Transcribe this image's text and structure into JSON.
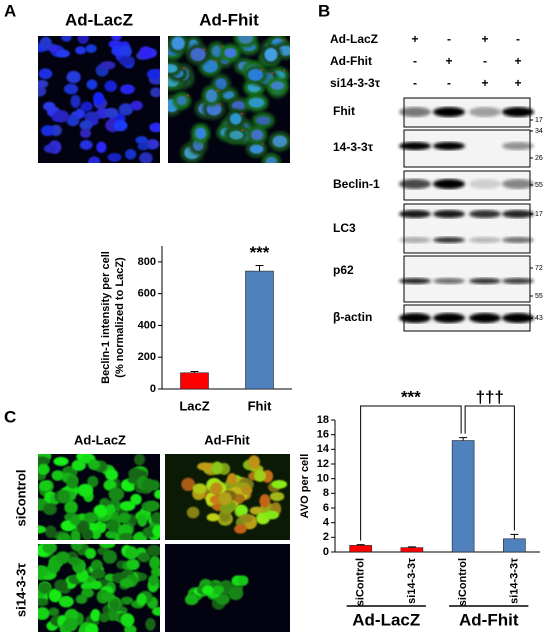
{
  "panel_labels": [
    "A",
    "B",
    "C"
  ],
  "panel_a": {
    "image_labels": [
      "Ad-LacZ",
      "Ad-Fhit"
    ]
  },
  "blot": {
    "treatments": [
      {
        "name": "Ad-LacZ",
        "signs": [
          "+",
          "-",
          "+",
          "-"
        ]
      },
      {
        "name": "Ad-Fhit",
        "signs": [
          "-",
          "+",
          "-",
          "+"
        ]
      },
      {
        "name": "si14-3-3τ",
        "signs": [
          "-",
          "-",
          "+",
          "+"
        ]
      }
    ],
    "rows": [
      {
        "name": "Fhit",
        "markers": [
          17
        ]
      },
      {
        "name": "14-3-3τ",
        "markers": [
          34,
          26
        ]
      },
      {
        "name": "Beclin-1",
        "markers": [
          55
        ]
      },
      {
        "name": "LC3",
        "markers": [
          17
        ]
      },
      {
        "name": "p62",
        "markers": [
          72,
          55
        ]
      },
      {
        "name": "β-actin",
        "markers": [
          43
        ]
      }
    ]
  },
  "panel_c": {
    "col_labels": [
      "Ad-LacZ",
      "Ad-Fhit"
    ],
    "row_labels": [
      "siControl",
      "si14-3-3τ"
    ]
  },
  "chart_data": [
    {
      "type": "bar",
      "ylabel": [
        "Beclin-1 intensity per cell",
        "(% normalized to LacZ)"
      ],
      "categories": [
        "LacZ",
        "Fhit"
      ],
      "values": [
        102,
        742
      ],
      "errors": [
        8,
        35
      ],
      "colors": [
        "#ff0000",
        "#4f81bd"
      ],
      "ylim": [
        0,
        900
      ],
      "yticks": [
        0,
        200,
        400,
        600,
        800
      ],
      "annotations": [
        "***"
      ]
    },
    {
      "type": "bar",
      "ylabel": "AVO per cell",
      "categories": [
        "siControl",
        "si14-3-3τ",
        "siControl",
        "si14-3-3τ"
      ],
      "groups": [
        "Ad-LacZ",
        "Ad-Fhit"
      ],
      "values": [
        0.9,
        0.6,
        15.2,
        1.8
      ],
      "errors": [
        0.1,
        0.1,
        0.4,
        0.6
      ],
      "colors": [
        "#ff0000",
        "#ff0000",
        "#4f81bd",
        "#4f81bd"
      ],
      "ylim": [
        0,
        18
      ],
      "yticks": [
        0,
        2,
        4,
        6,
        8,
        10,
        12,
        14,
        16,
        18
      ],
      "annotations": [
        "***",
        "†††"
      ]
    }
  ]
}
